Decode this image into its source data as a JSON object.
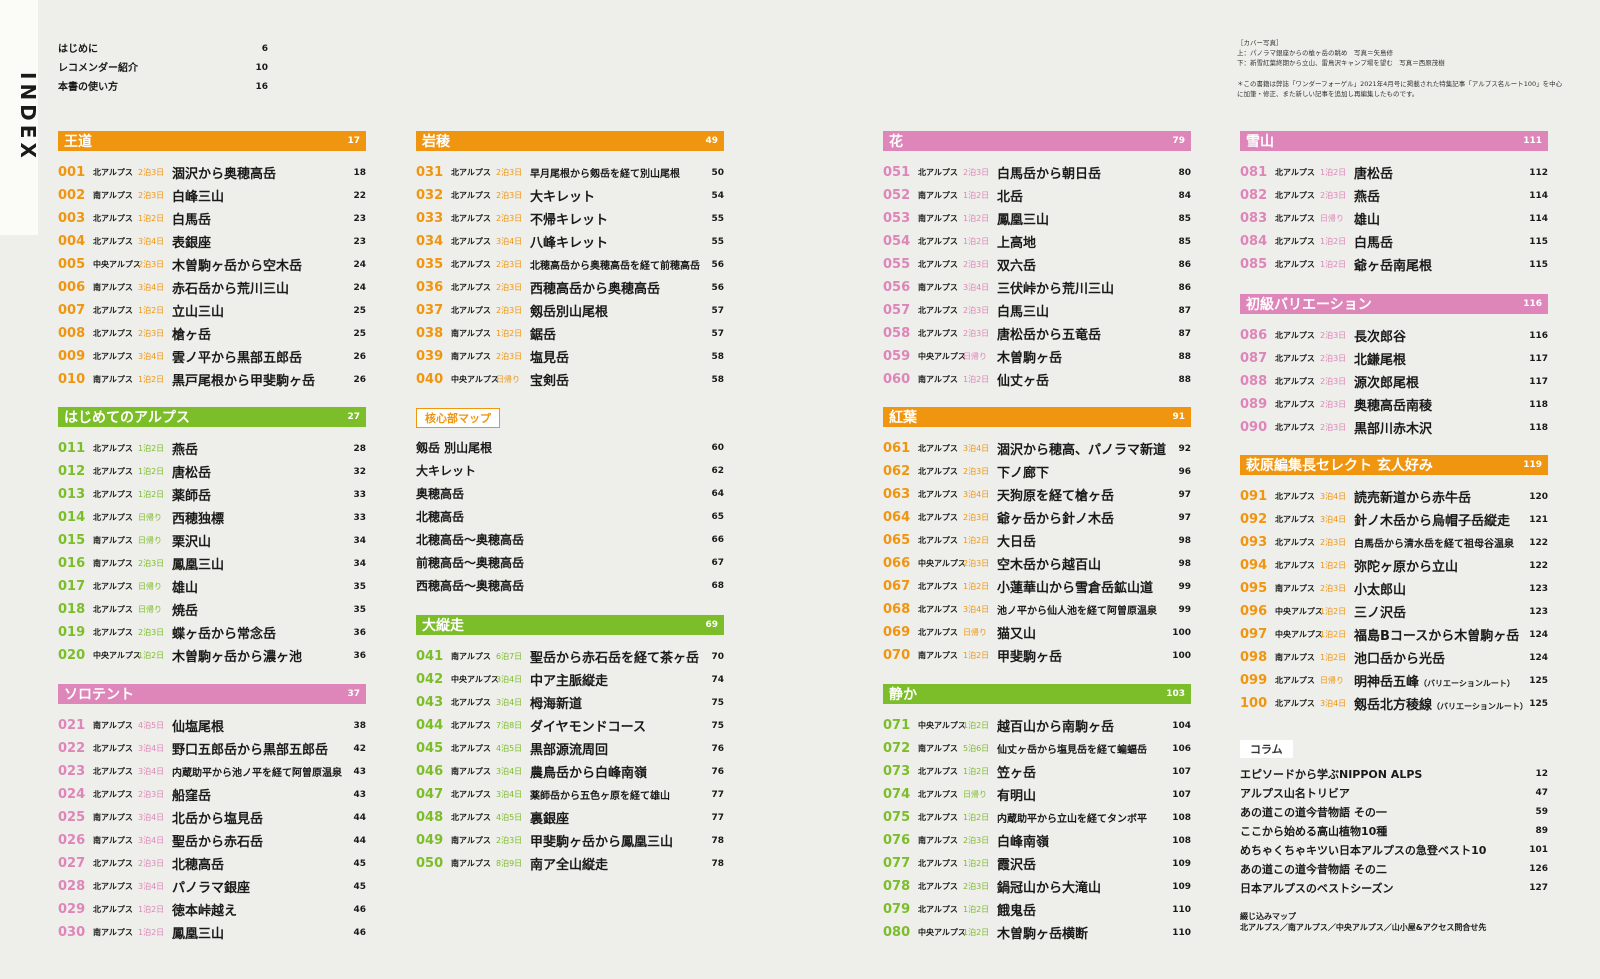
{
  "index_label": "INDEX",
  "intro": [
    {
      "label": "はじめに",
      "page": "6"
    },
    {
      "label": "レコメンダー紹介",
      "page": "10"
    },
    {
      "label": "本書の使い方",
      "page": "16"
    }
  ],
  "cover": {
    "heading": "［カバー写真］",
    "line1": "上：パノラマ銀座からの槍ヶ岳の眺め　写真＝矢島修",
    "line2": "下：新雪紅葉終期から立山、雷鳥沢キャンプ場を望む　写真＝西原茂樹",
    "note": "＊この書籍は弊誌「ワンダーフォーゲル」2021年4月号に掲載された特集記事「アルプス名ルート100」を中心に加筆・修正、また新しい記事を追加し再編集したものです。"
  },
  "sections": {
    "oudou": {
      "title": "王道",
      "page": "17",
      "color": "#f0950f",
      "rows": [
        {
          "num": "001",
          "area": "北アルプス",
          "days": "2泊3日",
          "name": "涸沢から奥穂高岳",
          "page": "18"
        },
        {
          "num": "002",
          "area": "南アルプス",
          "days": "2泊3日",
          "name": "白峰三山",
          "page": "22"
        },
        {
          "num": "003",
          "area": "北アルプス",
          "days": "1泊2日",
          "name": "白馬岳",
          "page": "23"
        },
        {
          "num": "004",
          "area": "北アルプス",
          "days": "3泊4日",
          "name": "表銀座",
          "page": "23"
        },
        {
          "num": "005",
          "area": "中央アルプス",
          "days": "2泊3日",
          "name": "木曽駒ヶ岳から空木岳",
          "page": "24"
        },
        {
          "num": "006",
          "area": "南アルプス",
          "days": "3泊4日",
          "name": "赤石岳から荒川三山",
          "page": "24"
        },
        {
          "num": "007",
          "area": "北アルプス",
          "days": "1泊2日",
          "name": "立山三山",
          "page": "25"
        },
        {
          "num": "008",
          "area": "北アルプス",
          "days": "2泊3日",
          "name": "槍ヶ岳",
          "page": "25"
        },
        {
          "num": "009",
          "area": "北アルプス",
          "days": "3泊4日",
          "name": "雲ノ平から黒部五郎岳",
          "page": "26"
        },
        {
          "num": "010",
          "area": "南アルプス",
          "days": "1泊2日",
          "name": "黒戸尾根から甲斐駒ヶ岳",
          "page": "26"
        }
      ]
    },
    "hajimete": {
      "title": "はじめてのアルプス",
      "page": "27",
      "color": "#7cbd2a",
      "rows": [
        {
          "num": "011",
          "area": "北アルプス",
          "days": "1泊2日",
          "name": "燕岳",
          "page": "28"
        },
        {
          "num": "012",
          "area": "北アルプス",
          "days": "1泊2日",
          "name": "唐松岳",
          "page": "32"
        },
        {
          "num": "013",
          "area": "北アルプス",
          "days": "1泊2日",
          "name": "薬師岳",
          "page": "33"
        },
        {
          "num": "014",
          "area": "北アルプス",
          "days": "日帰り",
          "name": "西穂独標",
          "page": "33"
        },
        {
          "num": "015",
          "area": "南アルプス",
          "days": "日帰り",
          "name": "栗沢山",
          "page": "34"
        },
        {
          "num": "016",
          "area": "南アルプス",
          "days": "2泊3日",
          "name": "鳳凰三山",
          "page": "34"
        },
        {
          "num": "017",
          "area": "北アルプス",
          "days": "日帰り",
          "name": "雄山",
          "page": "35"
        },
        {
          "num": "018",
          "area": "北アルプス",
          "days": "日帰り",
          "name": "焼岳",
          "page": "35"
        },
        {
          "num": "019",
          "area": "北アルプス",
          "days": "2泊3日",
          "name": "蝶ヶ岳から常念岳",
          "page": "36"
        },
        {
          "num": "020",
          "area": "中央アルプス",
          "days": "1泊2日",
          "name": "木曽駒ヶ岳から濃ヶ池",
          "page": "36"
        }
      ]
    },
    "solotent": {
      "title": "ソロテント",
      "page": "37",
      "color": "#de86b9",
      "rows": [
        {
          "num": "021",
          "area": "南アルプス",
          "days": "4泊5日",
          "name": "仙塩尾根",
          "page": "38"
        },
        {
          "num": "022",
          "area": "北アルプス",
          "days": "3泊4日",
          "name": "野口五郎岳から黒部五郎岳",
          "page": "42"
        },
        {
          "num": "023",
          "area": "北アルプス",
          "days": "3泊4日",
          "name": "内蔵助平から池ノ平を経て阿曽原温泉",
          "page": "43",
          "small": true
        },
        {
          "num": "024",
          "area": "北アルプス",
          "days": "2泊3日",
          "name": "船窪岳",
          "page": "43"
        },
        {
          "num": "025",
          "area": "南アルプス",
          "days": "3泊4日",
          "name": "北岳から塩見岳",
          "page": "44"
        },
        {
          "num": "026",
          "area": "南アルプス",
          "days": "3泊4日",
          "name": "聖岳から赤石岳",
          "page": "44"
        },
        {
          "num": "027",
          "area": "北アルプス",
          "days": "2泊3日",
          "name": "北穂高岳",
          "page": "45"
        },
        {
          "num": "028",
          "area": "北アルプス",
          "days": "3泊4日",
          "name": "パノラマ銀座",
          "page": "45"
        },
        {
          "num": "029",
          "area": "北アルプス",
          "days": "1泊2日",
          "name": "徳本峠越え",
          "page": "46"
        },
        {
          "num": "030",
          "area": "南アルプス",
          "days": "1泊2日",
          "name": "鳳凰三山",
          "page": "46"
        }
      ]
    },
    "iwaryou": {
      "title": "岩稜",
      "page": "49",
      "color": "#f0950f",
      "rows": [
        {
          "num": "031",
          "area": "北アルプス",
          "days": "2泊3日",
          "name": "早月尾根から剱岳を経て別山尾根",
          "page": "50",
          "small": true
        },
        {
          "num": "032",
          "area": "北アルプス",
          "days": "2泊3日",
          "name": "大キレット",
          "page": "54"
        },
        {
          "num": "033",
          "area": "北アルプス",
          "days": "2泊3日",
          "name": "不帰キレット",
          "page": "55"
        },
        {
          "num": "034",
          "area": "北アルプス",
          "days": "3泊4日",
          "name": "八峰キレット",
          "page": "55"
        },
        {
          "num": "035",
          "area": "北アルプス",
          "days": "2泊3日",
          "name": "北穂高岳から奥穂高岳を経て前穂高岳",
          "page": "56",
          "small": true
        },
        {
          "num": "036",
          "area": "北アルプス",
          "days": "2泊3日",
          "name": "西穂高岳から奥穂高岳",
          "page": "56"
        },
        {
          "num": "037",
          "area": "北アルプス",
          "days": "2泊3日",
          "name": "剱岳別山尾根",
          "page": "57"
        },
        {
          "num": "038",
          "area": "南アルプス",
          "days": "1泊2日",
          "name": "鋸岳",
          "page": "57"
        },
        {
          "num": "039",
          "area": "南アルプス",
          "days": "2泊3日",
          "name": "塩見岳",
          "page": "58"
        },
        {
          "num": "040",
          "area": "中央アルプス",
          "days": "日帰り",
          "name": "宝剣岳",
          "page": "58"
        }
      ]
    },
    "core_map": {
      "title": "核心部マップ",
      "rows": [
        {
          "name": "剱岳 別山尾根",
          "page": "60"
        },
        {
          "name": "大キレット",
          "page": "62"
        },
        {
          "name": "奥穂高岳",
          "page": "64"
        },
        {
          "name": "北穂高岳",
          "page": "65"
        },
        {
          "name": "北穂高岳～奥穂高岳",
          "page": "66"
        },
        {
          "name": "前穂高岳～奥穂高岳",
          "page": "67"
        },
        {
          "name": "西穂高岳～奥穂高岳",
          "page": "68"
        }
      ]
    },
    "daijuusou": {
      "title": "大縦走",
      "page": "69",
      "color": "#7cbd2a",
      "rows": [
        {
          "num": "041",
          "area": "南アルプス",
          "days": "6泊7日",
          "name": "聖岳から赤石岳を経て茶ヶ岳",
          "page": "70"
        },
        {
          "num": "042",
          "area": "中央アルプス",
          "days": "3泊4日",
          "name": "中ア主脈縦走",
          "page": "74"
        },
        {
          "num": "043",
          "area": "北アルプス",
          "days": "3泊4日",
          "name": "栂海新道",
          "page": "75"
        },
        {
          "num": "044",
          "area": "北アルプス",
          "days": "7泊8日",
          "name": "ダイヤモンドコース",
          "page": "75"
        },
        {
          "num": "045",
          "area": "北アルプス",
          "days": "4泊5日",
          "name": "黒部源流周回",
          "page": "76"
        },
        {
          "num": "046",
          "area": "南アルプス",
          "days": "3泊4日",
          "name": "農鳥岳から白峰南嶺",
          "page": "76"
        },
        {
          "num": "047",
          "area": "北アルプス",
          "days": "3泊4日",
          "name": "薬師岳から五色ヶ原を経て雄山",
          "page": "77",
          "small": true
        },
        {
          "num": "048",
          "area": "北アルプス",
          "days": "4泊5日",
          "name": "裏銀座",
          "page": "77"
        },
        {
          "num": "049",
          "area": "南アルプス",
          "days": "2泊3日",
          "name": "甲斐駒ヶ岳から鳳凰三山",
          "page": "78"
        },
        {
          "num": "050",
          "area": "南アルプス",
          "days": "8泊9日",
          "name": "南ア全山縦走",
          "page": "78"
        }
      ]
    },
    "hana": {
      "title": "花",
      "page": "79",
      "color": "#de86b9",
      "rows": [
        {
          "num": "051",
          "area": "北アルプス",
          "days": "2泊3日",
          "name": "白馬岳から朝日岳",
          "page": "80"
        },
        {
          "num": "052",
          "area": "南アルプス",
          "days": "1泊2日",
          "name": "北岳",
          "page": "84"
        },
        {
          "num": "053",
          "area": "南アルプス",
          "days": "1泊2日",
          "name": "鳳凰三山",
          "page": "85"
        },
        {
          "num": "054",
          "area": "北アルプス",
          "days": "1泊2日",
          "name": "上高地",
          "page": "85"
        },
        {
          "num": "055",
          "area": "北アルプス",
          "days": "2泊3日",
          "name": "双六岳",
          "page": "86"
        },
        {
          "num": "056",
          "area": "南アルプス",
          "days": "3泊4日",
          "name": "三伏峠から荒川三山",
          "page": "86"
        },
        {
          "num": "057",
          "area": "北アルプス",
          "days": "2泊3日",
          "name": "白馬三山",
          "page": "87"
        },
        {
          "num": "058",
          "area": "北アルプス",
          "days": "2泊3日",
          "name": "唐松岳から五竜岳",
          "page": "87"
        },
        {
          "num": "059",
          "area": "中央アルプス",
          "days": "日帰り",
          "name": "木曽駒ヶ岳",
          "page": "88"
        },
        {
          "num": "060",
          "area": "南アルプス",
          "days": "1泊2日",
          "name": "仙丈ヶ岳",
          "page": "88"
        }
      ]
    },
    "kouyou": {
      "title": "紅葉",
      "page": "91",
      "color": "#f0950f",
      "rows": [
        {
          "num": "061",
          "area": "北アルプス",
          "days": "3泊4日",
          "name": "涸沢から穂高、パノラマ新道",
          "page": "92"
        },
        {
          "num": "062",
          "area": "北アルプス",
          "days": "2泊3日",
          "name": "下ノ廊下",
          "page": "96"
        },
        {
          "num": "063",
          "area": "北アルプス",
          "days": "3泊4日",
          "name": "天狗原を経て槍ヶ岳",
          "page": "97"
        },
        {
          "num": "064",
          "area": "北アルプス",
          "days": "2泊3日",
          "name": "爺ヶ岳から針ノ木岳",
          "page": "97"
        },
        {
          "num": "065",
          "area": "北アルプス",
          "days": "1泊2日",
          "name": "大日岳",
          "page": "98"
        },
        {
          "num": "066",
          "area": "中央アルプス",
          "days": "2泊3日",
          "name": "空木岳から越百山",
          "page": "98"
        },
        {
          "num": "067",
          "area": "北アルプス",
          "days": "1泊2日",
          "name": "小蓮華山から雪倉岳鉱山道",
          "page": "99"
        },
        {
          "num": "068",
          "area": "北アルプス",
          "days": "3泊4日",
          "name": "池ノ平から仙人池を経て阿曽原温泉",
          "page": "99",
          "small": true
        },
        {
          "num": "069",
          "area": "北アルプス",
          "days": "日帰り",
          "name": "猫又山",
          "page": "100"
        },
        {
          "num": "070",
          "area": "南アルプス",
          "days": "1泊2日",
          "name": "甲斐駒ヶ岳",
          "page": "100"
        }
      ]
    },
    "shizuka": {
      "title": "静か",
      "page": "103",
      "color": "#7cbd2a",
      "rows": [
        {
          "num": "071",
          "area": "中央アルプス",
          "days": "1泊2日",
          "name": "越百山から南駒ヶ岳",
          "page": "104"
        },
        {
          "num": "072",
          "area": "南アルプス",
          "days": "5泊6日",
          "name": "仙丈ヶ岳から塩見岳を経て蝙蝠岳",
          "page": "106",
          "small": true
        },
        {
          "num": "073",
          "area": "北アルプス",
          "days": "1泊2日",
          "name": "笠ヶ岳",
          "page": "107"
        },
        {
          "num": "074",
          "area": "北アルプス",
          "days": "日帰り",
          "name": "有明山",
          "page": "107"
        },
        {
          "num": "075",
          "area": "北アルプス",
          "days": "1泊2日",
          "name": "内蔵助平から立山を経てタンボ平",
          "page": "108",
          "small": true
        },
        {
          "num": "076",
          "area": "南アルプス",
          "days": "2泊3日",
          "name": "白峰南嶺",
          "page": "108"
        },
        {
          "num": "077",
          "area": "北アルプス",
          "days": "1泊2日",
          "name": "霞沢岳",
          "page": "109"
        },
        {
          "num": "078",
          "area": "北アルプス",
          "days": "2泊3日",
          "name": "鍋冠山から大滝山",
          "page": "109"
        },
        {
          "num": "079",
          "area": "北アルプス",
          "days": "1泊2日",
          "name": "餓鬼岳",
          "page": "110"
        },
        {
          "num": "080",
          "area": "中央アルプス",
          "days": "1泊2日",
          "name": "木曽駒ヶ岳横断",
          "page": "110"
        }
      ]
    },
    "yuki": {
      "title": "雪山",
      "page": "111",
      "color": "#de86b9",
      "rows": [
        {
          "num": "081",
          "area": "北アルプス",
          "days": "1泊2日",
          "name": "唐松岳",
          "page": "112"
        },
        {
          "num": "082",
          "area": "北アルプス",
          "days": "2泊3日",
          "name": "燕岳",
          "page": "114"
        },
        {
          "num": "083",
          "area": "北アルプス",
          "days": "日帰り",
          "name": "雄山",
          "page": "114"
        },
        {
          "num": "084",
          "area": "北アルプス",
          "days": "1泊2日",
          "name": "白馬岳",
          "page": "115"
        },
        {
          "num": "085",
          "area": "北アルプス",
          "days": "1泊2日",
          "name": "爺ヶ岳南尾根",
          "page": "115"
        }
      ]
    },
    "shokyu": {
      "title": "初級バリエーション",
      "page": "116",
      "color": "#de86b9",
      "rows": [
        {
          "num": "086",
          "area": "北アルプス",
          "days": "2泊3日",
          "name": "長次郎谷",
          "page": "116"
        },
        {
          "num": "087",
          "area": "北アルプス",
          "days": "2泊3日",
          "name": "北鎌尾根",
          "page": "117"
        },
        {
          "num": "088",
          "area": "北アルプス",
          "days": "2泊3日",
          "name": "源次郎尾根",
          "page": "117"
        },
        {
          "num": "089",
          "area": "北アルプス",
          "days": "2泊3日",
          "name": "奥穂高岳南稜",
          "page": "118"
        },
        {
          "num": "090",
          "area": "北アルプス",
          "days": "2泊3日",
          "name": "黒部川赤木沢",
          "page": "118"
        }
      ]
    },
    "kuroto": {
      "title": "萩原編集長セレクト 玄人好み",
      "page": "119",
      "color": "#f0950f",
      "rows": [
        {
          "num": "091",
          "area": "北アルプス",
          "days": "3泊4日",
          "name": "読売新道から赤牛岳",
          "page": "120"
        },
        {
          "num": "092",
          "area": "北アルプス",
          "days": "3泊4日",
          "name": "針ノ木岳から烏帽子岳縦走",
          "page": "121"
        },
        {
          "num": "093",
          "area": "北アルプス",
          "days": "2泊3日",
          "name": "白馬岳から清水岳を経て祖母谷温泉",
          "page": "122",
          "small": true
        },
        {
          "num": "094",
          "area": "北アルプス",
          "days": "1泊2日",
          "name": "弥陀ヶ原から立山",
          "page": "122"
        },
        {
          "num": "095",
          "area": "南アルプス",
          "days": "2泊3日",
          "name": "小太郎山",
          "page": "123"
        },
        {
          "num": "096",
          "area": "中央アルプス",
          "days": "1泊2日",
          "name": "三ノ沢岳",
          "page": "123"
        },
        {
          "num": "097",
          "area": "中央アルプス",
          "days": "1泊2日",
          "name": "福島Bコースから木曽駒ヶ岳",
          "page": "124"
        },
        {
          "num": "098",
          "area": "南アルプス",
          "days": "1泊2日",
          "name": "池口岳から光岳",
          "page": "124"
        },
        {
          "num": "099",
          "area": "北アルプス",
          "days": "日帰り",
          "name": "明神岳五峰",
          "note": "（バリエーションルート）",
          "page": "125"
        },
        {
          "num": "100",
          "area": "北アルプス",
          "days": "3泊4日",
          "name": "剱岳北方稜線",
          "note": "（バリエーションルート）",
          "page": "125"
        }
      ]
    },
    "column": {
      "title": "コラム",
      "rows": [
        {
          "name": "エピソードから学ぶNIPPON ALPS",
          "page": "12"
        },
        {
          "name": "アルプス山名トリビア",
          "page": "47"
        },
        {
          "name": "あの道この道今昔物語 その一",
          "page": "59"
        },
        {
          "name": "ここから始める高山植物10種",
          "page": "89"
        },
        {
          "name": "めちゃくちゃキツい日本アルプスの急登ベスト10",
          "page": "101"
        },
        {
          "name": "あの道この道今昔物語 その二",
          "page": "126"
        },
        {
          "name": "日本アルプスのベストシーズン",
          "page": "127"
        }
      ]
    }
  },
  "foldout": {
    "title": "綴じ込みマップ",
    "text": "北アルプス／南アルプス／中央アルプス／山小屋&アクセス問合せ先"
  }
}
